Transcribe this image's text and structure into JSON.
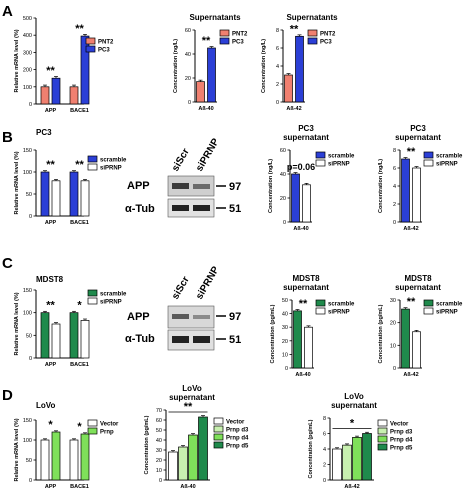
{
  "panels": [
    {
      "letter": "A"
    },
    {
      "letter": "B",
      "title": "PC3"
    },
    {
      "letter": "C",
      "title": "MDST8"
    },
    {
      "letter": "D",
      "title": "LoVo"
    }
  ],
  "blots": [
    {
      "lanes": [
        "siScr",
        "siPRNP"
      ],
      "rows": [
        "APP",
        "α-Tub"
      ],
      "markers": [
        "97",
        "51"
      ]
    },
    {
      "lanes": [
        "siScr",
        "siPRNP"
      ],
      "rows": [
        "APP",
        "α-Tub"
      ],
      "markers": [
        "97",
        "51"
      ]
    }
  ],
  "colors": {
    "PNT2": "#f08070",
    "PC3": "#2b3fd6",
    "scramble_B": "#2b3fd6",
    "scramble_C": "#1f8a4c",
    "siRNA": "#ffffff",
    "vector": "#ffffff",
    "prnp": "#7fe05a",
    "d3": "#c8f0b0",
    "d4": "#7fe05a",
    "d5": "#1f8a4c"
  },
  "chart_data": [
    {
      "id": "A1",
      "type": "bar",
      "title": "",
      "xlabel": "",
      "ylabel": "Relative mRNA level (%)",
      "ylim": [
        0,
        500
      ],
      "yticks": [
        0,
        100,
        200,
        300,
        400,
        500
      ],
      "categories": [
        "APP",
        "BACE1"
      ],
      "series": [
        {
          "name": "PNT2",
          "values": [
            100,
            100
          ]
        },
        {
          "name": "PC3",
          "values": [
            150,
            395
          ]
        }
      ],
      "annotations": [
        "**",
        "**"
      ],
      "legend": "top-right"
    },
    {
      "id": "A2",
      "type": "bar",
      "title": "Supernatants",
      "xlabel": "",
      "ylabel": "Concentration (ng/L)",
      "ylim": [
        0,
        60
      ],
      "yticks": [
        0,
        20,
        40,
        60
      ],
      "categories": [
        "Aß-40"
      ],
      "series": [
        {
          "name": "PNT2",
          "values": [
            17
          ]
        },
        {
          "name": "PC3",
          "values": [
            45
          ]
        }
      ],
      "annotations": [
        "**"
      ],
      "legend": "top-right"
    },
    {
      "id": "A3",
      "type": "bar",
      "title": "Supernatants",
      "xlabel": "",
      "ylabel": "Concentration (ng/L)",
      "ylim": [
        0,
        8
      ],
      "yticks": [
        0,
        2,
        4,
        6,
        8
      ],
      "categories": [
        "Aß-42"
      ],
      "series": [
        {
          "name": "PNT2",
          "values": [
            3
          ]
        },
        {
          "name": "PC3",
          "values": [
            7.3
          ]
        }
      ],
      "annotations": [
        "**"
      ],
      "legend": "top-right"
    },
    {
      "id": "B1",
      "type": "bar",
      "title": "PC3",
      "xlabel": "",
      "ylabel": "Relative mRNA level (%)",
      "ylim": [
        0,
        150
      ],
      "yticks": [
        0,
        50,
        100,
        150
      ],
      "categories": [
        "APP",
        "BACE1"
      ],
      "series": [
        {
          "name": "scramble",
          "values": [
            100,
            100
          ]
        },
        {
          "name": "siPRNP",
          "values": [
            80,
            80
          ]
        }
      ],
      "annotations": [
        "**",
        "**"
      ],
      "legend": "top-right"
    },
    {
      "id": "B2",
      "type": "bar",
      "title": "PC3 supernatant",
      "xlabel": "",
      "ylabel": "Concentration (ng/L)",
      "ylim": [
        0,
        60
      ],
      "yticks": [
        0,
        20,
        40,
        60
      ],
      "categories": [
        "Aß-40"
      ],
      "series": [
        {
          "name": "scramble",
          "values": [
            40
          ]
        },
        {
          "name": "siPRNP",
          "values": [
            31
          ]
        }
      ],
      "annotations": [
        "p=0.06"
      ],
      "legend": "top-right"
    },
    {
      "id": "B3",
      "type": "bar",
      "title": "PC3 supernatant",
      "xlabel": "",
      "ylabel": "Concentration (ng/L)",
      "ylim": [
        0,
        8
      ],
      "yticks": [
        0,
        2,
        4,
        6,
        8
      ],
      "categories": [
        "Aß-42"
      ],
      "series": [
        {
          "name": "scramble",
          "values": [
            7
          ]
        },
        {
          "name": "siPRNP",
          "values": [
            6
          ]
        }
      ],
      "annotations": [
        "**"
      ],
      "legend": "top-right"
    },
    {
      "id": "C1",
      "type": "bar",
      "title": "MDST8",
      "xlabel": "",
      "ylabel": "Relative mRNA level (%)",
      "ylim": [
        0,
        150
      ],
      "yticks": [
        0,
        50,
        100,
        150
      ],
      "categories": [
        "APP",
        "BACE1"
      ],
      "series": [
        {
          "name": "scramble",
          "values": [
            100,
            100
          ]
        },
        {
          "name": "siPRNP",
          "values": [
            75,
            83
          ]
        }
      ],
      "annotations": [
        "**",
        "*"
      ],
      "legend": "top-right"
    },
    {
      "id": "C2",
      "type": "bar",
      "title": "MDST8 supernatant",
      "xlabel": "",
      "ylabel": "Concentration (pg/mL)",
      "ylim": [
        0,
        50
      ],
      "yticks": [
        0,
        10,
        20,
        30,
        40,
        50
      ],
      "categories": [
        "Aß-40"
      ],
      "series": [
        {
          "name": "scramble",
          "values": [
            42
          ]
        },
        {
          "name": "siPRNP",
          "values": [
            30
          ]
        }
      ],
      "annotations": [
        "**"
      ],
      "legend": "top-right"
    },
    {
      "id": "C3",
      "type": "bar",
      "title": "MDST8 supernatant",
      "xlabel": "",
      "ylabel": "Concentration (pg/mL)",
      "ylim": [
        0,
        30
      ],
      "yticks": [
        0,
        10,
        20,
        30
      ],
      "categories": [
        "Aß-42"
      ],
      "series": [
        {
          "name": "scramble",
          "values": [
            26
          ]
        },
        {
          "name": "siPRNP",
          "values": [
            16
          ]
        }
      ],
      "annotations": [
        "**"
      ],
      "legend": "top-right"
    },
    {
      "id": "D1",
      "type": "bar",
      "title": "LoVo",
      "xlabel": "",
      "ylabel": "Relative mRNA level (%)",
      "ylim": [
        0,
        150
      ],
      "yticks": [
        0,
        50,
        100,
        150
      ],
      "categories": [
        "APP",
        "BACE1"
      ],
      "series": [
        {
          "name": "Vector",
          "values": [
            100,
            100
          ]
        },
        {
          "name": "Prnp",
          "values": [
            120,
            115
          ]
        }
      ],
      "annotations": [
        "*",
        "*"
      ],
      "legend": "top-right"
    },
    {
      "id": "D2",
      "type": "bar",
      "title": "LoVo supernatant",
      "xlabel": "",
      "ylabel": "Concentration (pg/mL)",
      "ylim": [
        0,
        70
      ],
      "yticks": [
        0,
        10,
        20,
        30,
        40,
        50,
        60,
        70
      ],
      "categories": [
        "Aß-40"
      ],
      "series": [
        {
          "name": "Vector",
          "values": [
            28
          ]
        },
        {
          "name": "Prnp d3",
          "values": [
            33
          ]
        },
        {
          "name": "Prnp d4",
          "values": [
            45
          ]
        },
        {
          "name": "Prnp d5",
          "values": [
            63
          ]
        }
      ],
      "annotations": [
        "**"
      ],
      "legend": "top-right"
    },
    {
      "id": "D3",
      "type": "bar",
      "title": "LoVo supernatant",
      "xlabel": "",
      "ylabel": "Concentration (pg/mL)",
      "ylim": [
        0,
        8
      ],
      "yticks": [
        0,
        2,
        4,
        6,
        8
      ],
      "categories": [
        "Aß-42"
      ],
      "series": [
        {
          "name": "Vector",
          "values": [
            4
          ]
        },
        {
          "name": "Prnp d3",
          "values": [
            4.5
          ]
        },
        {
          "name": "Prnp d4",
          "values": [
            5.5
          ]
        },
        {
          "name": "Prnp d5",
          "values": [
            6
          ]
        }
      ],
      "annotations": [
        "*"
      ],
      "legend": "top-right"
    }
  ]
}
